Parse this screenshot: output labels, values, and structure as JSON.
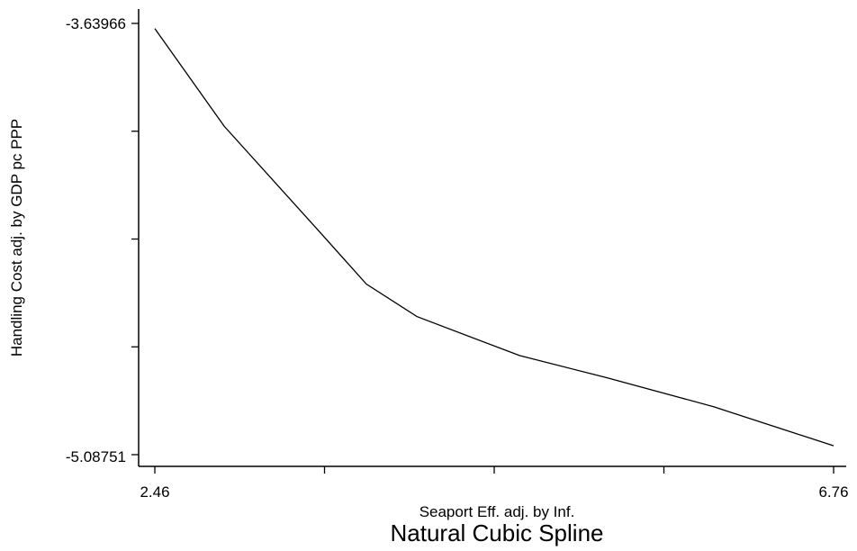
{
  "chart_data": {
    "type": "line",
    "title": "Natural Cubic Spline",
    "xlabel": "Seaport Eff. adj. by Inf.",
    "ylabel": "Handling Cost adj. by GDP pc PPP",
    "xlim": [
      2.46,
      6.76
    ],
    "ylim": [
      -5.08751,
      -3.63966
    ],
    "x_tick_labels": [
      "2.46",
      "6.76"
    ],
    "y_tick_labels": [
      "-3.63966",
      "-5.08751"
    ],
    "grid": false,
    "series": [
      {
        "x": [
          2.46,
          2.9,
          3.5,
          3.8,
          4.12,
          4.77,
          5.32,
          6.0,
          6.76
        ],
        "y": [
          -3.6573,
          -3.9856,
          -4.3373,
          -4.5148,
          -4.6239,
          -4.7546,
          -4.8287,
          -4.9265,
          -5.0577
        ]
      }
    ]
  }
}
